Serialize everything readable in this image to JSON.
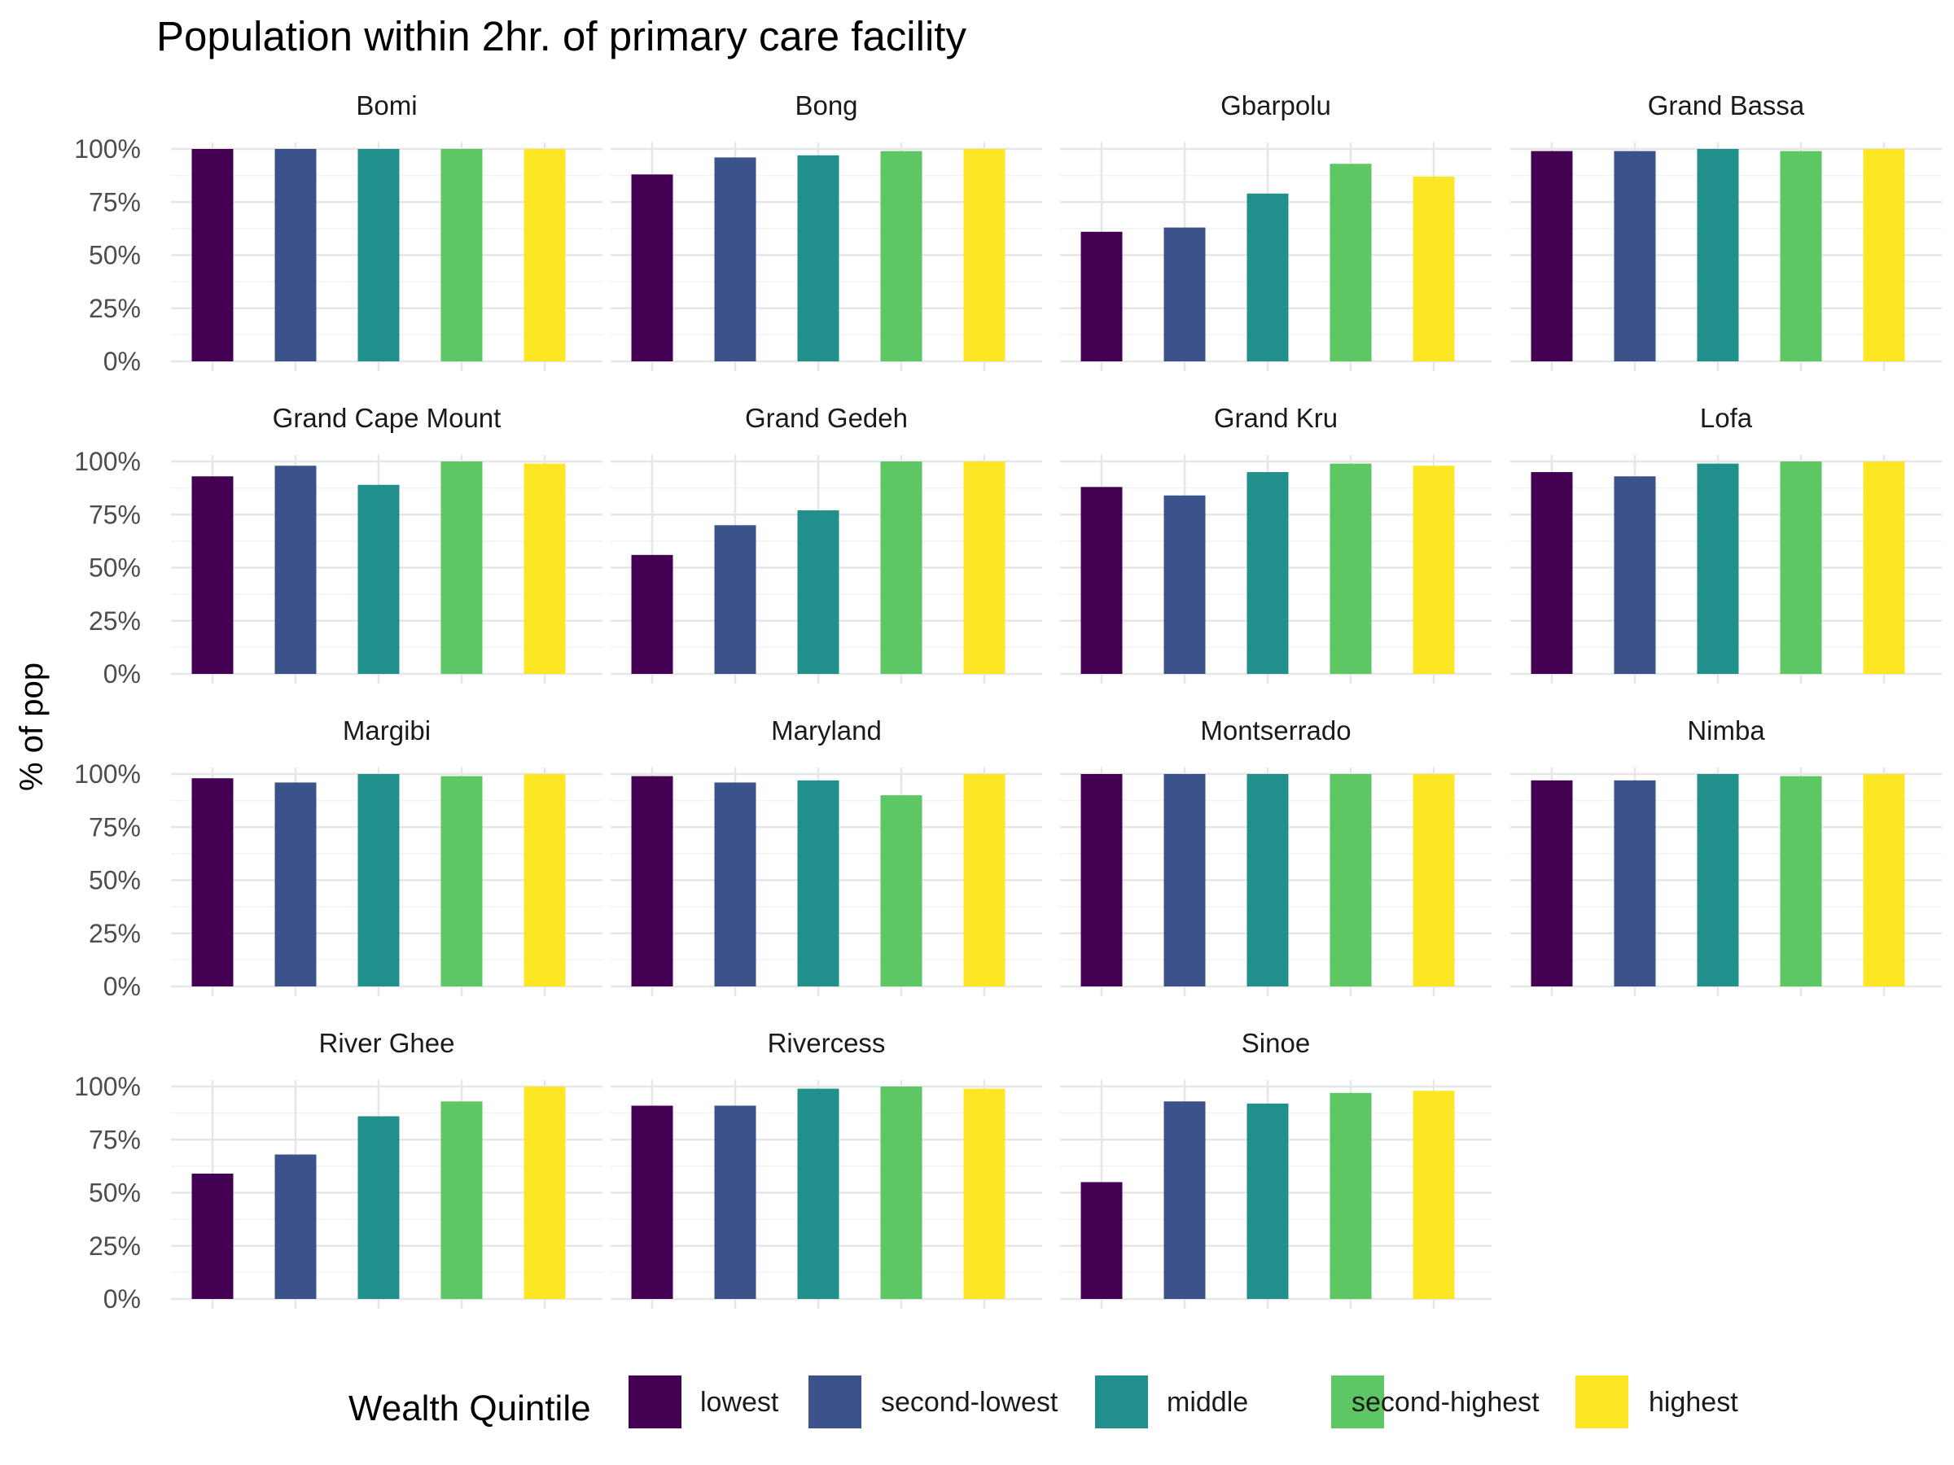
{
  "chart_data": {
    "type": "bar",
    "title": "Population within 2hr. of primary care facility",
    "ylabel": "% of pop",
    "xlabel": "",
    "ylim": [
      0,
      1
    ],
    "y_ticks": [
      "0%",
      "25%",
      "50%",
      "75%",
      "100%"
    ],
    "y_tick_values": [
      0,
      0.25,
      0.5,
      0.75,
      1.0
    ],
    "grid": true,
    "facet_layout": "4 columns x 4 rows",
    "legend": {
      "title": "Wealth Quintile",
      "position": "bottom",
      "entries": [
        {
          "name": "lowest",
          "color": "#440154"
        },
        {
          "name": "second-lowest",
          "color": "#3B528B"
        },
        {
          "name": "middle",
          "color": "#21908C"
        },
        {
          "name": "second-highest",
          "color": "#5DC863"
        },
        {
          "name": "highest",
          "color": "#FDE725"
        }
      ]
    },
    "categories": [
      "lowest",
      "second-lowest",
      "middle",
      "second-highest",
      "highest"
    ],
    "facets": [
      {
        "name": "Bomi",
        "values": [
          1.0,
          1.0,
          1.0,
          1.0,
          1.0
        ]
      },
      {
        "name": "Bong",
        "values": [
          0.88,
          0.96,
          0.97,
          0.99,
          1.0
        ]
      },
      {
        "name": "Gbarpolu",
        "values": [
          0.61,
          0.63,
          0.79,
          0.93,
          0.87
        ]
      },
      {
        "name": "Grand Bassa",
        "values": [
          0.99,
          0.99,
          1.0,
          0.99,
          1.0
        ]
      },
      {
        "name": "Grand Cape Mount",
        "values": [
          0.93,
          0.98,
          0.89,
          1.0,
          0.99
        ]
      },
      {
        "name": "Grand Gedeh",
        "values": [
          0.56,
          0.7,
          0.77,
          1.0,
          1.0
        ]
      },
      {
        "name": "Grand Kru",
        "values": [
          0.88,
          0.84,
          0.95,
          0.99,
          0.98
        ]
      },
      {
        "name": "Lofa",
        "values": [
          0.95,
          0.93,
          0.99,
          1.0,
          1.0
        ]
      },
      {
        "name": "Margibi",
        "values": [
          0.98,
          0.96,
          1.0,
          0.99,
          1.0
        ]
      },
      {
        "name": "Maryland",
        "values": [
          0.99,
          0.96,
          0.97,
          0.9,
          1.0
        ]
      },
      {
        "name": "Montserrado",
        "values": [
          1.0,
          1.0,
          1.0,
          1.0,
          1.0
        ]
      },
      {
        "name": "Nimba",
        "values": [
          0.97,
          0.97,
          1.0,
          0.99,
          1.0
        ]
      },
      {
        "name": "River Ghee",
        "values": [
          0.59,
          0.68,
          0.86,
          0.93,
          1.0
        ]
      },
      {
        "name": "Rivercess",
        "values": [
          0.91,
          0.91,
          0.99,
          1.0,
          0.99
        ]
      },
      {
        "name": "Sinoe",
        "values": [
          0.55,
          0.93,
          0.92,
          0.97,
          0.98
        ]
      }
    ]
  }
}
